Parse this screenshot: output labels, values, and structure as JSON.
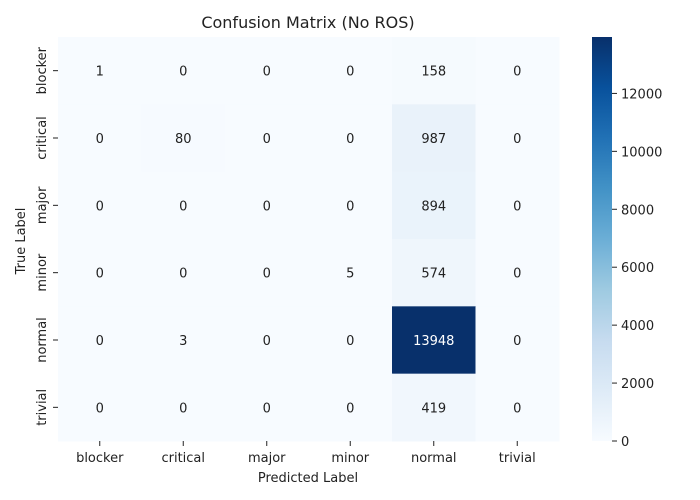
{
  "chart_data": {
    "type": "heatmap",
    "title": "Confusion Matrix (No ROS)",
    "xlabel": "Predicted Label",
    "ylabel": "True Label",
    "x_categories": [
      "blocker",
      "critical",
      "major",
      "minor",
      "normal",
      "trivial"
    ],
    "y_categories": [
      "blocker",
      "critical",
      "major",
      "minor",
      "normal",
      "trivial"
    ],
    "values": [
      [
        1,
        0,
        0,
        0,
        158,
        0
      ],
      [
        0,
        80,
        0,
        0,
        987,
        0
      ],
      [
        0,
        0,
        0,
        0,
        894,
        0
      ],
      [
        0,
        0,
        0,
        5,
        574,
        0
      ],
      [
        0,
        3,
        0,
        0,
        13948,
        0
      ],
      [
        0,
        0,
        0,
        0,
        419,
        0
      ]
    ],
    "colormap": "Blues",
    "colorbar": {
      "range": [
        0,
        13948
      ],
      "ticks": [
        0,
        2000,
        4000,
        6000,
        8000,
        10000,
        12000
      ]
    },
    "grid": false,
    "annotations": true
  }
}
